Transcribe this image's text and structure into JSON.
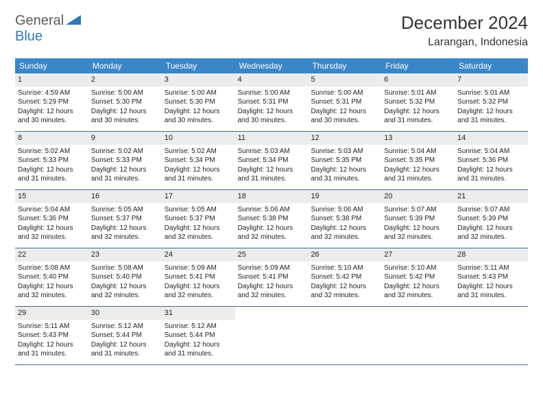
{
  "logo": {
    "word1": "General",
    "word2": "Blue"
  },
  "title": "December 2024",
  "location": "Larangan, Indonesia",
  "colors": {
    "header_bg": "#3b86c6",
    "header_text": "#ffffff",
    "daynum_bg": "#ececec",
    "week_border": "#3b6a9a",
    "logo_gray": "#5a5a5a",
    "logo_blue": "#2f78b8"
  },
  "weekdays": [
    "Sunday",
    "Monday",
    "Tuesday",
    "Wednesday",
    "Thursday",
    "Friday",
    "Saturday"
  ],
  "weeks": [
    [
      {
        "n": "1",
        "sr": "Sunrise: 4:59 AM",
        "ss": "Sunset: 5:29 PM",
        "d1": "Daylight: 12 hours",
        "d2": "and 30 minutes."
      },
      {
        "n": "2",
        "sr": "Sunrise: 5:00 AM",
        "ss": "Sunset: 5:30 PM",
        "d1": "Daylight: 12 hours",
        "d2": "and 30 minutes."
      },
      {
        "n": "3",
        "sr": "Sunrise: 5:00 AM",
        "ss": "Sunset: 5:30 PM",
        "d1": "Daylight: 12 hours",
        "d2": "and 30 minutes."
      },
      {
        "n": "4",
        "sr": "Sunrise: 5:00 AM",
        "ss": "Sunset: 5:31 PM",
        "d1": "Daylight: 12 hours",
        "d2": "and 30 minutes."
      },
      {
        "n": "5",
        "sr": "Sunrise: 5:00 AM",
        "ss": "Sunset: 5:31 PM",
        "d1": "Daylight: 12 hours",
        "d2": "and 30 minutes."
      },
      {
        "n": "6",
        "sr": "Sunrise: 5:01 AM",
        "ss": "Sunset: 5:32 PM",
        "d1": "Daylight: 12 hours",
        "d2": "and 31 minutes."
      },
      {
        "n": "7",
        "sr": "Sunrise: 5:01 AM",
        "ss": "Sunset: 5:32 PM",
        "d1": "Daylight: 12 hours",
        "d2": "and 31 minutes."
      }
    ],
    [
      {
        "n": "8",
        "sr": "Sunrise: 5:02 AM",
        "ss": "Sunset: 5:33 PM",
        "d1": "Daylight: 12 hours",
        "d2": "and 31 minutes."
      },
      {
        "n": "9",
        "sr": "Sunrise: 5:02 AM",
        "ss": "Sunset: 5:33 PM",
        "d1": "Daylight: 12 hours",
        "d2": "and 31 minutes."
      },
      {
        "n": "10",
        "sr": "Sunrise: 5:02 AM",
        "ss": "Sunset: 5:34 PM",
        "d1": "Daylight: 12 hours",
        "d2": "and 31 minutes."
      },
      {
        "n": "11",
        "sr": "Sunrise: 5:03 AM",
        "ss": "Sunset: 5:34 PM",
        "d1": "Daylight: 12 hours",
        "d2": "and 31 minutes."
      },
      {
        "n": "12",
        "sr": "Sunrise: 5:03 AM",
        "ss": "Sunset: 5:35 PM",
        "d1": "Daylight: 12 hours",
        "d2": "and 31 minutes."
      },
      {
        "n": "13",
        "sr": "Sunrise: 5:04 AM",
        "ss": "Sunset: 5:35 PM",
        "d1": "Daylight: 12 hours",
        "d2": "and 31 minutes."
      },
      {
        "n": "14",
        "sr": "Sunrise: 5:04 AM",
        "ss": "Sunset: 5:36 PM",
        "d1": "Daylight: 12 hours",
        "d2": "and 31 minutes."
      }
    ],
    [
      {
        "n": "15",
        "sr": "Sunrise: 5:04 AM",
        "ss": "Sunset: 5:36 PM",
        "d1": "Daylight: 12 hours",
        "d2": "and 32 minutes."
      },
      {
        "n": "16",
        "sr": "Sunrise: 5:05 AM",
        "ss": "Sunset: 5:37 PM",
        "d1": "Daylight: 12 hours",
        "d2": "and 32 minutes."
      },
      {
        "n": "17",
        "sr": "Sunrise: 5:05 AM",
        "ss": "Sunset: 5:37 PM",
        "d1": "Daylight: 12 hours",
        "d2": "and 32 minutes."
      },
      {
        "n": "18",
        "sr": "Sunrise: 5:06 AM",
        "ss": "Sunset: 5:38 PM",
        "d1": "Daylight: 12 hours",
        "d2": "and 32 minutes."
      },
      {
        "n": "19",
        "sr": "Sunrise: 5:06 AM",
        "ss": "Sunset: 5:38 PM",
        "d1": "Daylight: 12 hours",
        "d2": "and 32 minutes."
      },
      {
        "n": "20",
        "sr": "Sunrise: 5:07 AM",
        "ss": "Sunset: 5:39 PM",
        "d1": "Daylight: 12 hours",
        "d2": "and 32 minutes."
      },
      {
        "n": "21",
        "sr": "Sunrise: 5:07 AM",
        "ss": "Sunset: 5:39 PM",
        "d1": "Daylight: 12 hours",
        "d2": "and 32 minutes."
      }
    ],
    [
      {
        "n": "22",
        "sr": "Sunrise: 5:08 AM",
        "ss": "Sunset: 5:40 PM",
        "d1": "Daylight: 12 hours",
        "d2": "and 32 minutes."
      },
      {
        "n": "23",
        "sr": "Sunrise: 5:08 AM",
        "ss": "Sunset: 5:40 PM",
        "d1": "Daylight: 12 hours",
        "d2": "and 32 minutes."
      },
      {
        "n": "24",
        "sr": "Sunrise: 5:09 AM",
        "ss": "Sunset: 5:41 PM",
        "d1": "Daylight: 12 hours",
        "d2": "and 32 minutes."
      },
      {
        "n": "25",
        "sr": "Sunrise: 5:09 AM",
        "ss": "Sunset: 5:41 PM",
        "d1": "Daylight: 12 hours",
        "d2": "and 32 minutes."
      },
      {
        "n": "26",
        "sr": "Sunrise: 5:10 AM",
        "ss": "Sunset: 5:42 PM",
        "d1": "Daylight: 12 hours",
        "d2": "and 32 minutes."
      },
      {
        "n": "27",
        "sr": "Sunrise: 5:10 AM",
        "ss": "Sunset: 5:42 PM",
        "d1": "Daylight: 12 hours",
        "d2": "and 32 minutes."
      },
      {
        "n": "28",
        "sr": "Sunrise: 5:11 AM",
        "ss": "Sunset: 5:43 PM",
        "d1": "Daylight: 12 hours",
        "d2": "and 31 minutes."
      }
    ],
    [
      {
        "n": "29",
        "sr": "Sunrise: 5:11 AM",
        "ss": "Sunset: 5:43 PM",
        "d1": "Daylight: 12 hours",
        "d2": "and 31 minutes."
      },
      {
        "n": "30",
        "sr": "Sunrise: 5:12 AM",
        "ss": "Sunset: 5:44 PM",
        "d1": "Daylight: 12 hours",
        "d2": "and 31 minutes."
      },
      {
        "n": "31",
        "sr": "Sunrise: 5:12 AM",
        "ss": "Sunset: 5:44 PM",
        "d1": "Daylight: 12 hours",
        "d2": "and 31 minutes."
      },
      null,
      null,
      null,
      null
    ]
  ]
}
